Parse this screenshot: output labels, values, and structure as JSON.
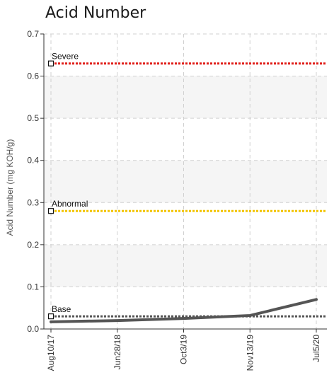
{
  "chart_data": {
    "type": "line",
    "title": "Acid Number",
    "ylabel": "Acid Number (mg KOH/g)",
    "xlabel": "",
    "ylim": [
      0,
      0.7
    ],
    "y_ticks": [
      "0.0",
      "0.1",
      "0.2",
      "0.3",
      "0.4",
      "0.5",
      "0.6",
      "0.7"
    ],
    "x_ticks": [
      "Aug10/17",
      "Jun28/18",
      "Oct3/19",
      "Nov13/19",
      "Jul5/20"
    ],
    "grid": true,
    "series": [
      {
        "x": [
          "Aug10/17",
          "Jun28/18",
          "Oct3/19",
          "Nov13/19",
          "Jul5/20"
        ],
        "values": [
          0.017,
          0.02,
          0.025,
          0.032,
          0.07
        ],
        "color": "#555555"
      }
    ],
    "thresholds": [
      {
        "label": "Severe",
        "value": 0.63,
        "color": "#e0201b"
      },
      {
        "label": "Abnormal",
        "value": 0.28,
        "color": "#f2c400"
      },
      {
        "label": "Base",
        "value": 0.03,
        "color": "#555555"
      }
    ]
  }
}
